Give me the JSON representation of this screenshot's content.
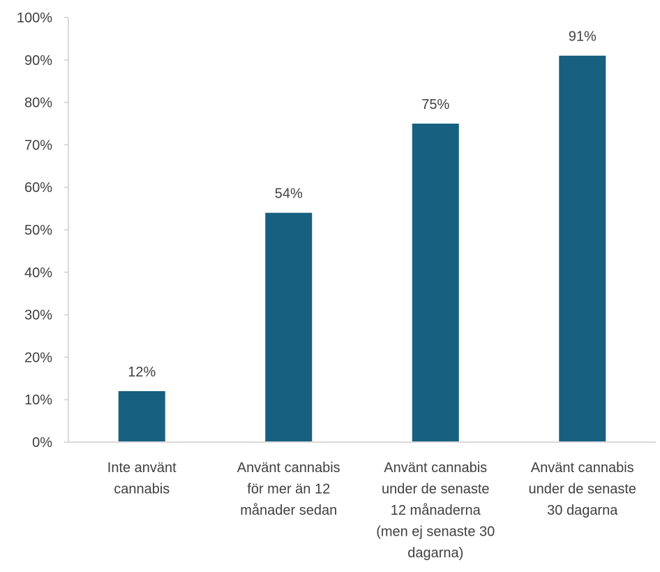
{
  "chart_data": {
    "type": "bar",
    "categories": [
      [
        "Inte använt",
        "cannabis"
      ],
      [
        "Använt cannabis",
        "för mer än 12",
        "månader sedan"
      ],
      [
        "Använt cannabis",
        "under de senaste",
        "12 månaderna",
        "(men ej senaste 30",
        "dagarna)"
      ],
      [
        "Använt cannabis",
        "under de senaste",
        "30 dagarna"
      ]
    ],
    "values": [
      12,
      54,
      75,
      91
    ],
    "value_labels": [
      "12%",
      "54%",
      "75%",
      "91%"
    ],
    "title": "",
    "xlabel": "",
    "ylabel": "",
    "ylim": [
      0,
      100
    ],
    "yticks": [
      0,
      10,
      20,
      30,
      40,
      50,
      60,
      70,
      80,
      90,
      100
    ],
    "ytick_labels": [
      "0%",
      "10%",
      "20%",
      "30%",
      "40%",
      "50%",
      "60%",
      "70%",
      "80%",
      "90%",
      "100%"
    ],
    "grid": false,
    "legend": "none",
    "bar_color": "#17607f",
    "axis_color": "#d9d9d9"
  }
}
